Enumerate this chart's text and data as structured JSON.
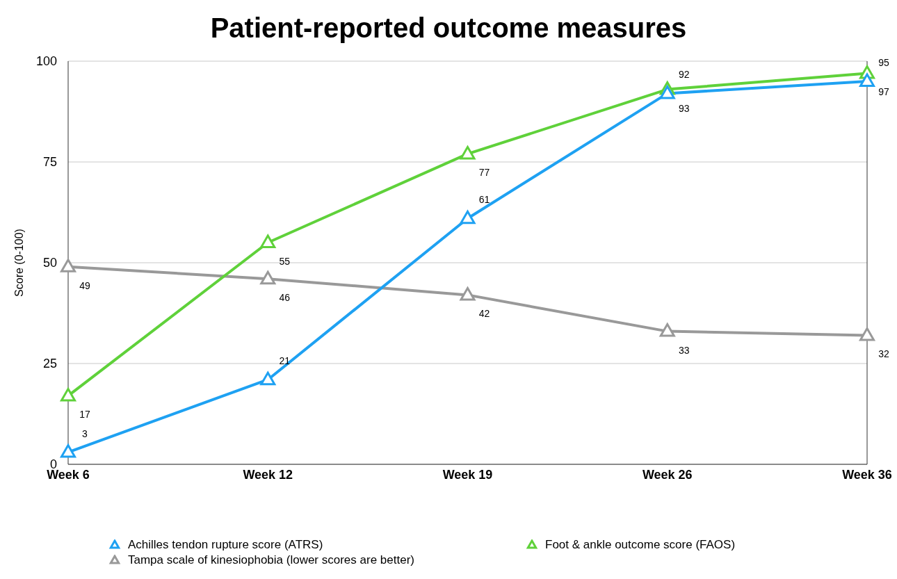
{
  "chart_data": {
    "type": "line",
    "title": "Patient-reported outcome measures",
    "ylabel": "Score (0-100)",
    "categories": [
      "Week 6",
      "Week 12",
      "Week 19",
      "Week 26",
      "Week 36"
    ],
    "series": [
      {
        "name": "Achilles tendon rupture score (ATRS)",
        "color": "#1ea1f2",
        "values": [
          3,
          21,
          61,
          92,
          95
        ]
      },
      {
        "name": "Foot & ankle outcome score (FAOS)",
        "color": "#5fd13a",
        "values": [
          17,
          55,
          77,
          93,
          97
        ]
      },
      {
        "name": "Tampa scale of kinesiophobia (lower scores are better)",
        "color": "#999999",
        "values": [
          49,
          46,
          42,
          33,
          32
        ]
      }
    ],
    "ylim": [
      0,
      100
    ],
    "yticks": [
      0,
      25,
      50,
      75,
      100
    ],
    "grid": "y",
    "legend": "bottom",
    "marker": "triangle",
    "line_style": "solid",
    "data_labels": true
  }
}
